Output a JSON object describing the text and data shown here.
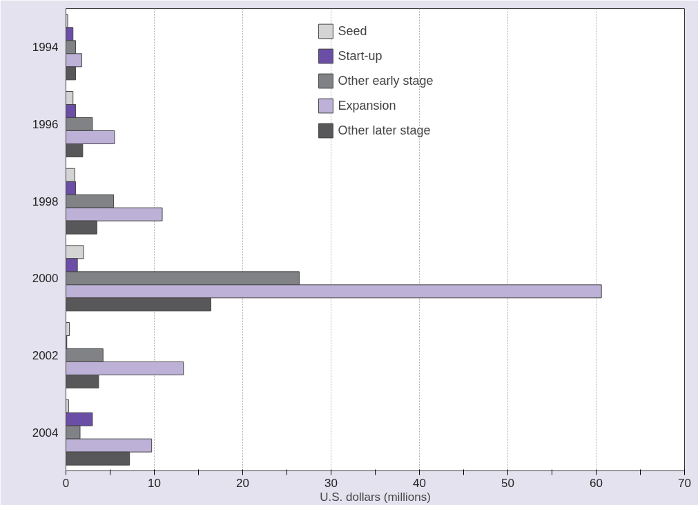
{
  "chart_data": {
    "type": "bar",
    "orientation": "horizontal",
    "xlabel": "U.S. dollars (millions)",
    "categories": [
      "1994",
      "1996",
      "1998",
      "2000",
      "2002",
      "2004"
    ],
    "series": [
      {
        "name": "Seed",
        "color": "#d4d4d4",
        "values": [
          0.2,
          0.8,
          1.0,
          2.0,
          0.4,
          0.3
        ]
      },
      {
        "name": "Start-up",
        "color": "#6b4fa6",
        "values": [
          0.8,
          1.1,
          1.1,
          1.3,
          0.1,
          3.0
        ]
      },
      {
        "name": "Other early stage",
        "color": "#808285",
        "values": [
          1.1,
          3.0,
          5.4,
          26.4,
          4.2,
          1.6
        ]
      },
      {
        "name": "Expansion",
        "color": "#bdb1d7",
        "values": [
          1.8,
          5.5,
          10.9,
          60.6,
          13.3,
          9.7
        ]
      },
      {
        "name": "Other later stage",
        "color": "#58585a",
        "values": [
          1.1,
          1.9,
          3.5,
          16.4,
          3.7,
          7.2
        ]
      }
    ],
    "xlim": [
      0,
      70
    ],
    "xticks": [
      0,
      {
        "value": 5,
        "label": null
      },
      10,
      {
        "value": 15,
        "label": null
      },
      20,
      {
        "value": 25,
        "label": null
      },
      30,
      {
        "value": 35,
        "label": null
      },
      40,
      {
        "value": 45,
        "label": null
      },
      50,
      {
        "value": 55,
        "label": null
      },
      60,
      {
        "value": 65,
        "label": null
      },
      70
    ],
    "grid": "x",
    "legend": "top"
  }
}
